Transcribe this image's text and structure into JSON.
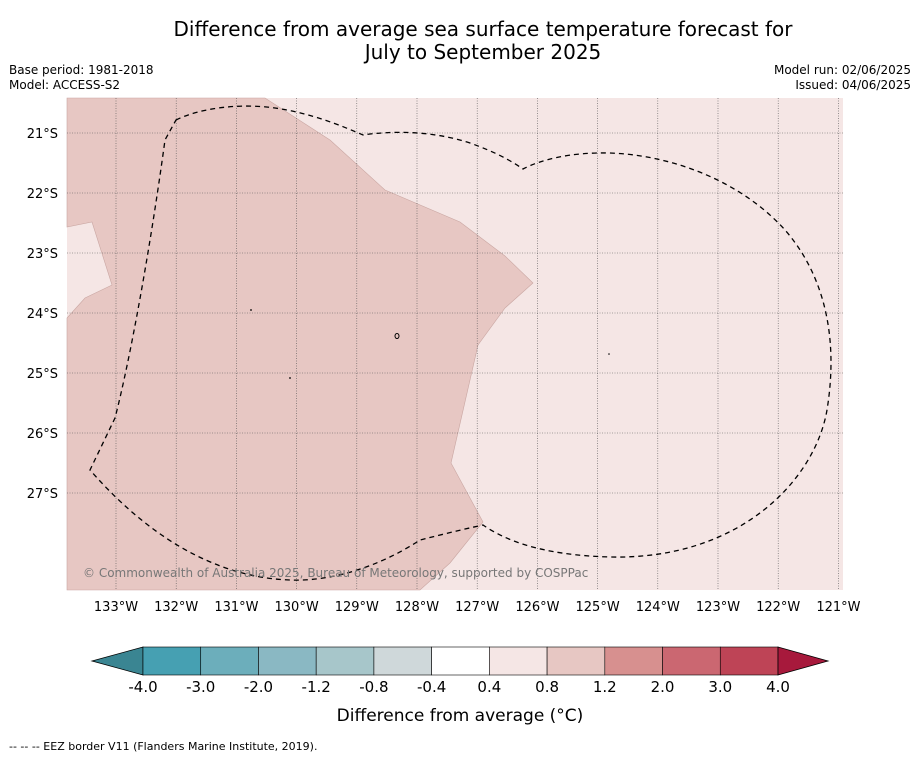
{
  "title_line1": "Difference from average sea surface temperature forecast for",
  "title_line2": "July to September 2025",
  "meta_left": {
    "base_period": "Base period: 1981-2018",
    "model": "Model: ACCESS-S2"
  },
  "meta_right": {
    "model_run": "Model run: 02/06/2025",
    "issued": "Issued: 04/06/2025"
  },
  "copyright": "© Commonwealth of Australia 2025, Bureau of Meteorology, supported by COSPPac",
  "footnote": "-- -- -- EEZ border V11 (Flanders Marine Institute, 2019).",
  "map": {
    "lat_labels": [
      "21°S",
      "22°S",
      "23°S",
      "24°S",
      "25°S",
      "26°S",
      "27°S"
    ],
    "lon_labels": [
      "133°W",
      "132°W",
      "131°W",
      "130°W",
      "129°W",
      "128°W",
      "127°W",
      "126°W",
      "125°W",
      "124°W",
      "123°W",
      "122°W",
      "121°W"
    ],
    "fill_colors": {
      "0.4_to_0.8": "#f5e6e5",
      "0.8_to_1.2": "#e7c7c3"
    }
  },
  "colorbar": {
    "title": "Difference from average (°C)",
    "tick_labels": [
      "-4.0",
      "-3.0",
      "-2.0",
      "-1.2",
      "-0.8",
      "-0.4",
      "0.4",
      "0.8",
      "1.2",
      "2.0",
      "3.0",
      "4.0"
    ],
    "colors": [
      "#46a0b2",
      "#6caebb",
      "#8ab8c3",
      "#a7c6ca",
      "#cfd8da",
      "#ffffff",
      "#f5e6e5",
      "#e7c7c3",
      "#d7908f",
      "#cb6771",
      "#be4456"
    ],
    "extend_low_color": "#3a8592",
    "extend_high_color": "#a7193c"
  }
}
